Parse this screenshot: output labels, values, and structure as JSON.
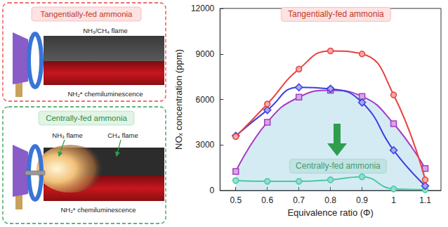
{
  "diagram": {
    "panels": [
      {
        "title": "Tangentially-fed ammonia",
        "flame_label": "NH₃/CH₄ flame",
        "emission_label": "NH₂* chemiluminescence"
      },
      {
        "title": "Centrally-fed ammonia",
        "ammonia_flame_label": "NH₃ flame",
        "methane_flame_label": "CH₄ flame",
        "emission_label": "NH₂* chemiluminescence"
      }
    ]
  },
  "chart_data": {
    "type": "line",
    "xlabel": "Equivalence ratio (Φ)",
    "ylabel": "NOₓ concentration (ppm)",
    "x": [
      0.5,
      0.6,
      0.7,
      0.8,
      0.9,
      1.0,
      1.1
    ],
    "xlim": [
      0.45,
      1.15
    ],
    "xticks": [
      0.5,
      0.6,
      0.7,
      0.8,
      0.9,
      1.0,
      1.1
    ],
    "ylim": [
      0,
      12000
    ],
    "yticks": [
      0,
      3000,
      6000,
      9000,
      12000
    ],
    "grid": false,
    "series": [
      {
        "color": "#e8423f",
        "marker": "circle",
        "values": [
          3550,
          5700,
          8000,
          9200,
          9000,
          6300,
          700
        ]
      },
      {
        "color": "#3b3fe0",
        "marker": "diamond",
        "values": [
          3600,
          5300,
          6800,
          6700,
          5800,
          2650,
          300
        ]
      },
      {
        "color": "#a63cc4",
        "marker": "square",
        "values": [
          1250,
          4500,
          6150,
          6600,
          6200,
          4400,
          1450
        ]
      },
      {
        "color": "#2fcf8c",
        "marker": "circle",
        "values": [
          650,
          600,
          600,
          700,
          900,
          100,
          50
        ]
      }
    ],
    "annotations": [
      "Tangentially-fed ammonia",
      "Centrally-fed ammonia"
    ]
  }
}
